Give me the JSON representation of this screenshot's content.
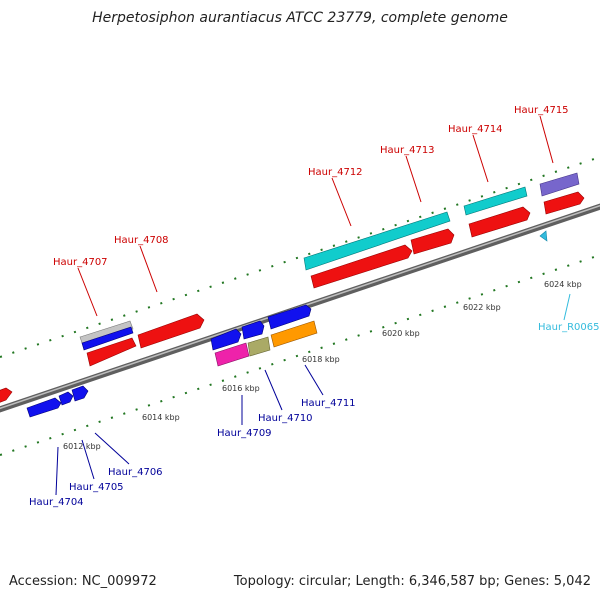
{
  "title": "Herpetosiphon aurantiacus ATCC 23779, complete genome",
  "footer": {
    "accession_text": "Accession: NC_009972",
    "summary_text": "Topology: circular; Length: 6,346,587 bp; Genes: 5,042"
  },
  "colors": {
    "label_forward": "#cc0000",
    "label_reverse": "#000099",
    "label_rna": "#33bbdd",
    "backbone": "#888888",
    "tick": "#227722"
  },
  "scale_labels": [
    "6012 kbp",
    "6014 kbp",
    "6016 kbp",
    "6018 kbp",
    "6020 kbp",
    "6022 kbp",
    "6024 kbp"
  ],
  "forward_genes": [
    "Haur_4707",
    "Haur_4708",
    "Haur_4712",
    "Haur_4713",
    "Haur_4714",
    "Haur_4715"
  ],
  "reverse_genes": [
    "Haur_4704",
    "Haur_4705",
    "Haur_4706",
    "Haur_4709",
    "Haur_4710",
    "Haur_4711"
  ],
  "rna_genes": [
    "Haur_R0065"
  ]
}
